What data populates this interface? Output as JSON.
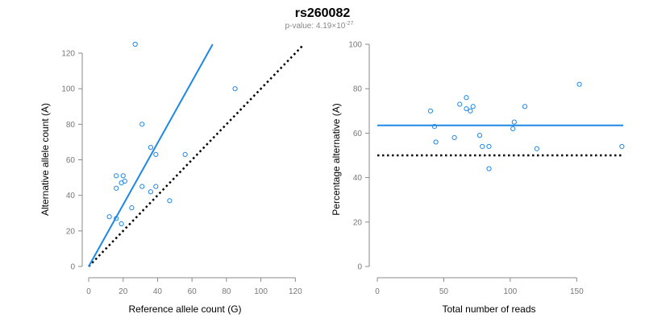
{
  "title": "rs260082",
  "subtitle_prefix": "p-value: 4.19×10",
  "subtitle_exponent": "-27",
  "colors": {
    "point": "#1e88e5",
    "fit": "#1e88e5",
    "reference": "#000000",
    "axis": "#888888"
  },
  "chart_data": [
    {
      "type": "scatter",
      "xlabel": "Reference allele count (G)",
      "ylabel": "Alternative allele count (A)",
      "xlim": [
        0,
        125
      ],
      "ylim": [
        0,
        125
      ],
      "xticks": [
        "0",
        "20",
        "40",
        "60",
        "80",
        "100",
        "120"
      ],
      "yticks": [
        "0",
        "20",
        "40",
        "60",
        "80",
        "100",
        "120"
      ],
      "grid": false,
      "points": [
        [
          27,
          125
        ],
        [
          85,
          100
        ],
        [
          31,
          80
        ],
        [
          36,
          67
        ],
        [
          39,
          63
        ],
        [
          56,
          63
        ],
        [
          16,
          51
        ],
        [
          20,
          51
        ],
        [
          21,
          48
        ],
        [
          19,
          47
        ],
        [
          16,
          44
        ],
        [
          31,
          45
        ],
        [
          39,
          45
        ],
        [
          36,
          42
        ],
        [
          47,
          37
        ],
        [
          25,
          33
        ],
        [
          12,
          28
        ],
        [
          16,
          27
        ],
        [
          19,
          24
        ]
      ],
      "fit_line": {
        "x": [
          0,
          72
        ],
        "y": [
          0,
          125
        ]
      },
      "reference_line": {
        "x": [
          0,
          125
        ],
        "y": [
          0,
          125
        ],
        "style": "dotted"
      }
    },
    {
      "type": "scatter",
      "xlabel": "Total number of reads",
      "ylabel": "Percentage alternative (A)",
      "xlim": [
        0,
        185
      ],
      "ylim": [
        0,
        100
      ],
      "xticks": [
        "0",
        "50",
        "100",
        "150"
      ],
      "yticks": [
        "0",
        "20",
        "40",
        "60",
        "80",
        "100"
      ],
      "grid": false,
      "points": [
        [
          152,
          82
        ],
        [
          67,
          76
        ],
        [
          62,
          73
        ],
        [
          72,
          72
        ],
        [
          111,
          72
        ],
        [
          40,
          70
        ],
        [
          67,
          71
        ],
        [
          70,
          70
        ],
        [
          103,
          65
        ],
        [
          43,
          63
        ],
        [
          102,
          62
        ],
        [
          77,
          59
        ],
        [
          58,
          58
        ],
        [
          44,
          56
        ],
        [
          79,
          54
        ],
        [
          84,
          54
        ],
        [
          184,
          54
        ],
        [
          120,
          53
        ],
        [
          84,
          44
        ]
      ],
      "fit_line": {
        "x": [
          0,
          185
        ],
        "y": [
          63.5,
          63.5
        ]
      },
      "reference_line": {
        "x": [
          0,
          185
        ],
        "y": [
          50,
          50
        ],
        "style": "dotted"
      }
    }
  ]
}
